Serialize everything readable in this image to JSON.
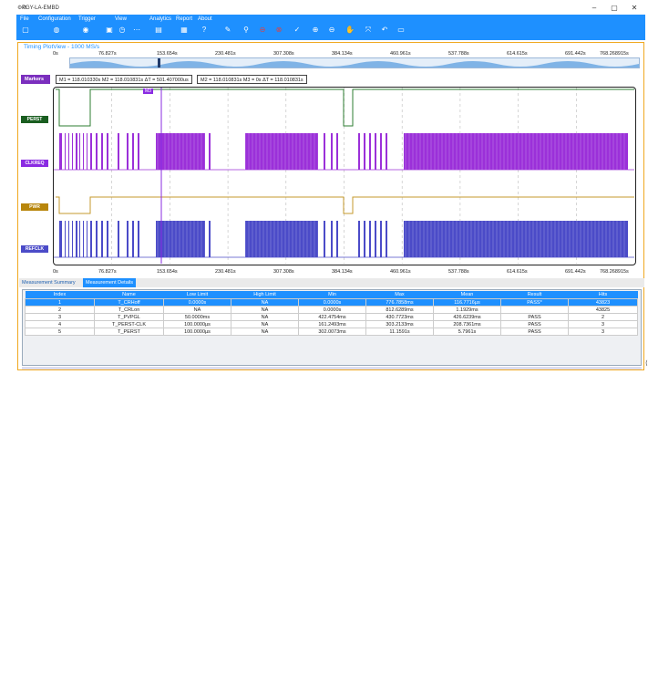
{
  "window": {
    "title": "PGY-LA-EMBD",
    "minimize": "–",
    "maximize": "▢",
    "close": "✕"
  },
  "menu": [
    "File",
    "Configuration",
    "Trigger",
    "View",
    "Analytics",
    "Report",
    "About"
  ],
  "toolbar_icons": [
    "new-icon",
    "open-icon",
    "capture-icon",
    "stop-icon",
    "timer-icon",
    "dots-icon",
    "chart-icon",
    "save-report-icon",
    "help-icon",
    "pen-icon",
    "probe-icon",
    "stop-red-icon",
    "record-red-icon",
    "check-icon",
    "zoom-in-icon",
    "zoom-out-icon",
    "hand-icon",
    "fit-icon",
    "undo-icon",
    "screenshot-icon"
  ],
  "panel": {
    "title": "Timing PlotView - 1000 MS/s"
  },
  "time_axis": [
    "0s",
    "76.827s",
    "153.654s",
    "230.481s",
    "307.308s",
    "384.134s",
    "460.961s",
    "537.788s",
    "614.615s",
    "691.442s",
    "768.268915s"
  ],
  "markers": {
    "label": "Markers",
    "box1": "M1 = 118.010330s M2 = 118.010831s ΔT = 501.407000us",
    "box2": "M2 = 118.010831s M3 = 0s ΔT = 118.010831s",
    "m3_tag": "M3"
  },
  "signals": [
    {
      "name": "PERST",
      "color": "#1a5e20",
      "kind": "level"
    },
    {
      "name": "CLKREQ",
      "color": "#8a2be2",
      "kind": "dense"
    },
    {
      "name": "PWR",
      "color": "#b8860b",
      "kind": "level"
    },
    {
      "name": "REFCLK",
      "color": "#4b4bc8",
      "kind": "dense"
    }
  ],
  "tabs": [
    "Measurement Summary",
    "Measurement Details"
  ],
  "table": {
    "headers": [
      "Index",
      "Name",
      "Low Limit",
      "High Limit",
      "Min",
      "Max",
      "Mean",
      "Result",
      "Hits"
    ],
    "rows": [
      [
        "1",
        "T_CRHoff",
        "0.0000s",
        "NA",
        "0.0000s",
        "776.7858ms",
        "116.7716µs",
        "PASS*",
        "43823"
      ],
      [
        "2",
        "T_CRLon",
        "NA",
        "NA",
        "0.0000s",
        "812.6289ms",
        "1.1929ms",
        "",
        "43825"
      ],
      [
        "3",
        "T_PVPGL",
        "50.0000ms",
        "NA",
        "422.4754ms",
        "430.7723ms",
        "426.6239ms",
        "PASS",
        "2"
      ],
      [
        "4",
        "T_PERST-CLK",
        "100.0000µs",
        "NA",
        "161.2493ms",
        "303.2133ms",
        "208.7361ms",
        "PASS",
        "3"
      ],
      [
        "5",
        "T_PERST",
        "100.0000µs",
        "NA",
        "302.0073ms",
        "11.1591s",
        "5.7961s",
        "PASS",
        "3"
      ]
    ]
  },
  "colors": {
    "accent": "#1e90ff",
    "panel_border": "#f0a820",
    "marker": "#8a2be2"
  }
}
